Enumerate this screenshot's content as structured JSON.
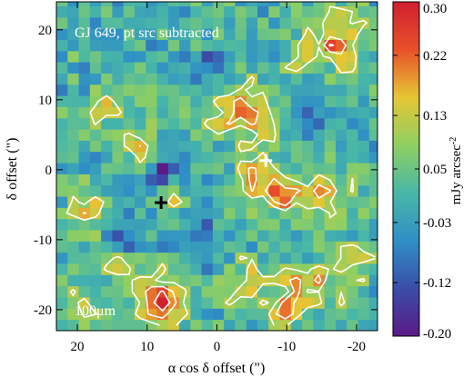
{
  "chart_data": {
    "type": "heatmap",
    "title": "",
    "annotation_top": "GJ 649, pt src subtracted",
    "annotation_bottom": "100μm",
    "xlabel": "α cos δ offset (\")",
    "ylabel": "δ offset (\")",
    "xlim": [
      23,
      -23
    ],
    "ylim": [
      -23,
      24
    ],
    "x_ticks": [
      20,
      10,
      0,
      -10,
      -20
    ],
    "y_ticks": [
      20,
      10,
      0,
      -10,
      -20
    ],
    "x_tick_labels": [
      "20",
      "10",
      "0",
      "-10",
      "-20"
    ],
    "y_tick_labels": [
      "20",
      "10",
      "0",
      "-10",
      "-20"
    ],
    "pixel_size_arcsec": 1.6,
    "colorbar": {
      "label": "mJy arcsec",
      "label_exponent": "-2",
      "range": [
        -0.2,
        0.3
      ],
      "ticks": [
        0.3,
        0.22,
        0.13,
        0.05,
        -0.03,
        -0.12,
        -0.2
      ],
      "tick_labels": [
        "0.30",
        "0.22",
        "0.13",
        "0.05",
        "-0.03",
        "-0.12",
        "-0.20"
      ],
      "colors": [
        "#5b1a86",
        "#3a4ea8",
        "#2f8fc6",
        "#49b7a7",
        "#8fcf62",
        "#e6c634",
        "#e8502a",
        "#d02030"
      ]
    },
    "markers": [
      {
        "symbol": "plus",
        "color": "#000000",
        "x": 8,
        "y": -4.7
      },
      {
        "symbol": "plus",
        "color": "#ffffff",
        "x": -7,
        "y": 1.3
      }
    ],
    "features": [
      {
        "x": -18,
        "y": 19,
        "amp": 0.17,
        "sigma": 3
      },
      {
        "x": -13,
        "y": 16,
        "amp": 0.12,
        "sigma": 2.5
      },
      {
        "x": -2,
        "y": 9,
        "amp": 0.16,
        "sigma": 3
      },
      {
        "x": -7,
        "y": 7,
        "amp": 0.14,
        "sigma": 2.5
      },
      {
        "x": 16,
        "y": 9,
        "amp": 0.12,
        "sigma": 2
      },
      {
        "x": 11,
        "y": 12,
        "amp": 0.1,
        "sigma": 2
      },
      {
        "x": 12,
        "y": 3,
        "amp": 0.12,
        "sigma": 2.2
      },
      {
        "x": -6,
        "y": -1,
        "amp": 0.15,
        "sigma": 2.5
      },
      {
        "x": -10,
        "y": -4,
        "amp": 0.13,
        "sigma": 2.5
      },
      {
        "x": -16,
        "y": -3,
        "amp": 0.14,
        "sigma": 3
      },
      {
        "x": 18,
        "y": -6,
        "amp": 0.13,
        "sigma": 2.5
      },
      {
        "x": 6,
        "y": -5,
        "amp": 0.09,
        "sigma": 1.8
      },
      {
        "x": 8,
        "y": -18.5,
        "amp": 0.3,
        "sigma": 2.4
      },
      {
        "x": 20,
        "y": -20,
        "amp": 0.12,
        "sigma": 2.2
      },
      {
        "x": 14,
        "y": -14,
        "amp": 0.11,
        "sigma": 2
      },
      {
        "x": -5,
        "y": -16,
        "amp": 0.12,
        "sigma": 2.5
      },
      {
        "x": -13,
        "y": -17,
        "amp": 0.14,
        "sigma": 3
      },
      {
        "x": -20,
        "y": -13,
        "amp": 0.11,
        "sigma": 2
      },
      {
        "x": -10,
        "y": -20,
        "amp": 0.1,
        "sigma": 2
      },
      {
        "x": 8,
        "y": 0,
        "amp": -0.22,
        "sigma": 1.4
      },
      {
        "x": 1,
        "y": 14,
        "amp": -0.1,
        "sigma": 2.5
      },
      {
        "x": -12,
        "y": 10,
        "amp": -0.08,
        "sigma": 3
      },
      {
        "x": 3,
        "y": -9,
        "amp": -0.08,
        "sigma": 2.5
      },
      {
        "x": 13,
        "y": -9,
        "amp": -0.1,
        "sigma": 2
      }
    ]
  }
}
